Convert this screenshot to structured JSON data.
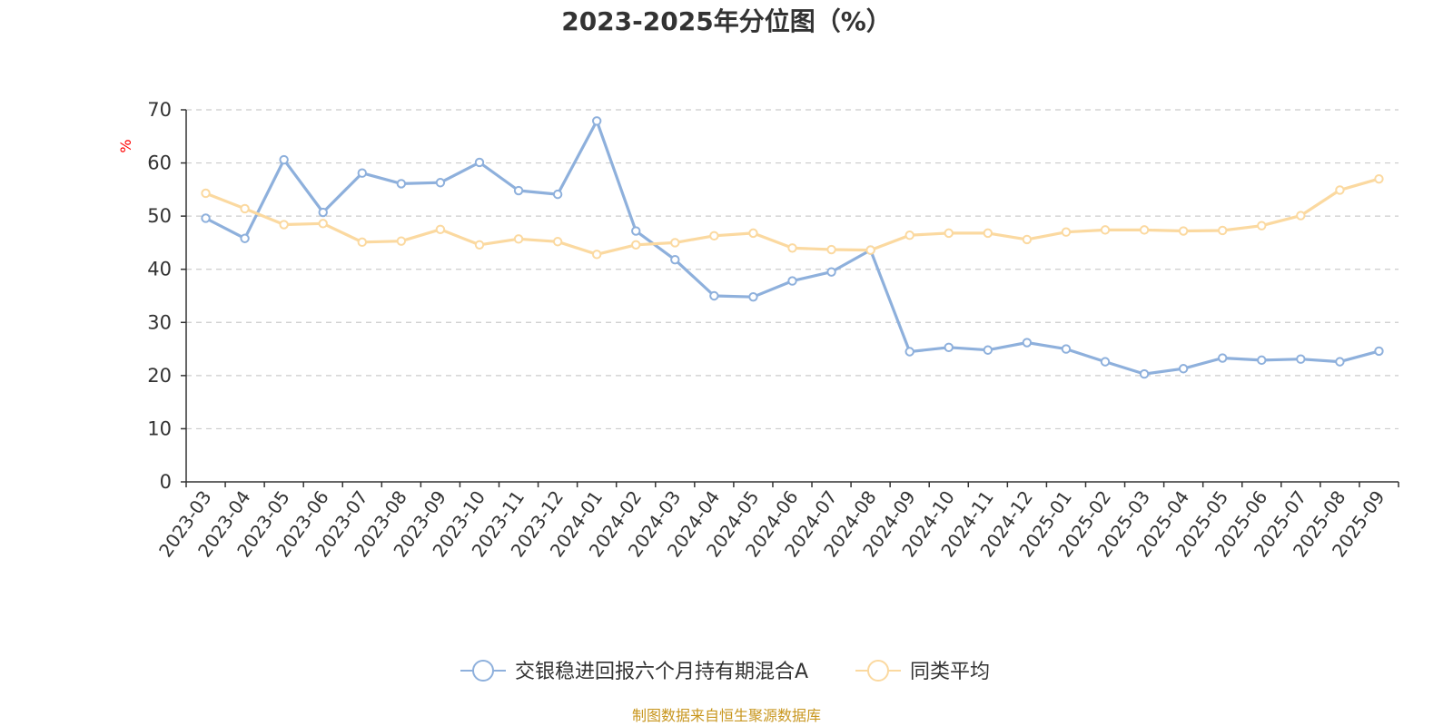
{
  "chart_data": {
    "type": "line",
    "title": "2023-2025年分位图（%）",
    "ylabel": "%",
    "xlabel": "",
    "ylim": [
      0,
      70
    ],
    "yticks": [
      0,
      10,
      20,
      30,
      40,
      50,
      60,
      70
    ],
    "grid": true,
    "legend_position": "bottom-center",
    "categories": [
      "2023-03",
      "2023-04",
      "2023-05",
      "2023-06",
      "2023-07",
      "2023-08",
      "2023-09",
      "2023-10",
      "2023-11",
      "2023-12",
      "2024-01",
      "2024-02",
      "2024-03",
      "2024-04",
      "2024-05",
      "2024-06",
      "2024-07",
      "2024-08",
      "2024-09",
      "2024-10",
      "2024-11",
      "2024-12",
      "2025-01",
      "2025-02",
      "2025-03",
      "2025-04",
      "2025-05",
      "2025-06",
      "2025-07",
      "2025-08",
      "2025-09"
    ],
    "series": [
      {
        "name": "交银稳进回报六个月持有期混合A",
        "color": "#8eb0dc",
        "values": [
          49.6,
          45.8,
          60.6,
          50.7,
          58.1,
          56.1,
          56.3,
          60.1,
          54.8,
          54.1,
          67.9,
          47.2,
          41.8,
          35.0,
          34.8,
          37.8,
          39.5,
          43.6,
          24.5,
          25.3,
          24.8,
          26.2,
          25.0,
          22.6,
          20.3,
          21.3,
          23.3,
          22.9,
          23.1,
          22.6,
          24.6
        ]
      },
      {
        "name": "同类平均",
        "color": "#fbd9a0",
        "values": [
          54.3,
          51.4,
          48.4,
          48.6,
          45.1,
          45.3,
          47.5,
          44.6,
          45.7,
          45.2,
          42.8,
          44.6,
          45.0,
          46.3,
          46.8,
          44.0,
          43.7,
          43.6,
          46.4,
          46.8,
          46.8,
          45.6,
          47.0,
          47.4,
          47.4,
          47.2,
          47.3,
          48.2,
          50.1,
          54.9,
          57.0
        ]
      }
    ],
    "source": "制图数据来自恒生聚源数据库"
  },
  "colors": {
    "axis": "#333333",
    "grid": "#cccccc",
    "unit": "#ff0000",
    "source": "#c8961e"
  }
}
